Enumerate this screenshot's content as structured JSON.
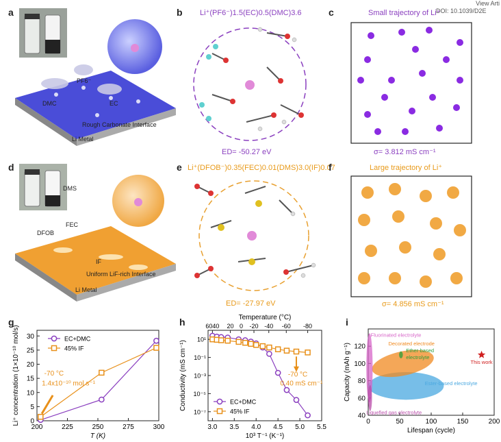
{
  "header": {
    "view_text": "View Arti",
    "doi_text": "DOI: 10.1039/D2E"
  },
  "panels": {
    "a": {
      "label": "a",
      "pf6": "PF6⁻",
      "dmc": "DMC",
      "ec": "EC",
      "interface": "Rough Carbonate Interface",
      "metal": "Li Metal"
    },
    "b": {
      "label": "b",
      "formula": "Li⁺(PF6⁻)1.5(EC)0.5(DMC)3.6",
      "energy": "ED= -50.27 eV"
    },
    "c": {
      "label": "c",
      "title": "Small trajectory of Li⁺",
      "sigma": "σ= 3.812 mS cm⁻¹"
    },
    "d": {
      "label": "d",
      "dms": "DMS",
      "fec": "FEC",
      "dfob": "DFOB",
      "if": "IF",
      "interface": "Uniform LiF-rich Interface",
      "metal": "Li Metal"
    },
    "e": {
      "label": "e",
      "formula": "Li⁺(DFOB⁻)0.35(FEC)0.01(DMS)3.0(IF)0.07",
      "energy": "ED= -27.97 eV"
    },
    "f": {
      "label": "f",
      "title": "Large trajectory of Li⁺",
      "sigma": "σ= 4.856 mS cm⁻¹"
    },
    "g": {
      "label": "g"
    },
    "h": {
      "label": "h"
    },
    "i": {
      "label": "i"
    }
  },
  "chart_data": [
    {
      "id": "g",
      "type": "line",
      "xlabel": "T (K)",
      "ylabel": "Li⁺ concentration (1×10⁻¹⁰ mol/s)",
      "xlim": [
        200,
        300
      ],
      "ylim": [
        0,
        32
      ],
      "xticks": [
        200,
        225,
        250,
        275,
        300
      ],
      "yticks": [
        0,
        5,
        10,
        15,
        20,
        25,
        30
      ],
      "series": [
        {
          "name": "EC+DMC",
          "color": "#8a3fbf",
          "marker": "circle",
          "x": [
            203,
            253,
            298
          ],
          "y": [
            0.3,
            7.5,
            28.3
          ]
        },
        {
          "name": "45% IF",
          "color": "#e8901a",
          "marker": "square",
          "x": [
            203,
            253,
            298
          ],
          "y": [
            1.4,
            17.0,
            25.8
          ]
        }
      ],
      "annotation": {
        "line1": "-70 °C",
        "line2": "1.4x10⁻¹⁰ mol s⁻¹"
      }
    },
    {
      "id": "h",
      "type": "line",
      "xlabel": "10³ T⁻¹ (K⁻¹)",
      "ylabel": "Conductivity (mS cm⁻¹)",
      "top_label": "Temperature (°C)",
      "top_ticks": [
        "6040",
        "20",
        "0",
        "-20",
        "-40",
        "-60",
        "-80"
      ],
      "top_ticks_x": [
        3.0,
        3.41,
        3.66,
        3.95,
        4.29,
        4.69,
        5.18
      ],
      "xlim": [
        2.9,
        5.5
      ],
      "ylim_log": [
        -8,
        2
      ],
      "xticks": [
        3.0,
        3.5,
        4.0,
        4.5,
        5.0,
        5.5
      ],
      "ytick_labels": [
        "10¹",
        "10⁻¹",
        "10⁻³",
        "10⁻⁵",
        "10⁻⁷"
      ],
      "ytick_exps": [
        1,
        -1,
        -3,
        -5,
        -7
      ],
      "series": [
        {
          "name": "EC+DMC",
          "color": "#8a3fbf",
          "marker": "circle",
          "x": [
            3.0,
            3.1,
            3.2,
            3.35,
            3.6,
            3.75,
            3.88,
            4.0,
            4.15,
            4.3,
            4.5,
            4.7,
            4.92,
            5.18
          ],
          "y": [
            1.4,
            1.3,
            1.25,
            1.2,
            1.0,
            0.9,
            0.75,
            0.55,
            0.1,
            -0.6,
            -2.7,
            -4.6,
            -5.7,
            -7.4
          ]
        },
        {
          "name": "45% IF",
          "color": "#e8901a",
          "marker": "square",
          "x": [
            3.0,
            3.1,
            3.2,
            3.35,
            3.6,
            3.75,
            3.88,
            4.0,
            4.15,
            4.3,
            4.5,
            4.7,
            4.92,
            5.18
          ],
          "y": [
            1.0,
            0.95,
            0.9,
            0.85,
            0.72,
            0.62,
            0.5,
            0.38,
            0.25,
            0.1,
            -0.1,
            -0.25,
            -0.35,
            -0.45
          ]
        }
      ],
      "annotation": {
        "line1": "-70 °C",
        "line2": "0.40 mS cm⁻¹"
      }
    },
    {
      "id": "i",
      "type": "scatter",
      "xlabel": "Lifespan (cycle)",
      "ylabel": "Capacity (mAh g⁻¹)",
      "xlim": [
        0,
        200
      ],
      "ylim": [
        40,
        140
      ],
      "xticks": [
        0,
        50,
        100,
        150,
        200
      ],
      "yticks": [
        40,
        60,
        80,
        100,
        120
      ],
      "regions": [
        {
          "name": "Fluorinated electrolyte",
          "color": "#d766c8",
          "cx": 2,
          "cy": 95,
          "rx": 5,
          "ry": 40
        },
        {
          "name": "Decorated electrode",
          "color": "#f08a20",
          "cx": 55,
          "cy": 100,
          "rx": 50,
          "ry": 14
        },
        {
          "name": "Ether-based electrolyte",
          "color": "#2a9d3a",
          "cx": 52,
          "cy": 110,
          "rx": 3,
          "ry": 4
        },
        {
          "name": "Ester-based electrolyte",
          "color": "#4aa8e0",
          "cx": 60,
          "cy": 74,
          "rx": 60,
          "ry": 16
        },
        {
          "name": "Liquefied gas electrolyte",
          "color": "#b84aa8",
          "cx": 3,
          "cy": 60,
          "rx": 3,
          "ry": 15
        }
      ],
      "star": {
        "name": "This work",
        "x": 180,
        "y": 110,
        "color": "#d02020"
      }
    }
  ]
}
